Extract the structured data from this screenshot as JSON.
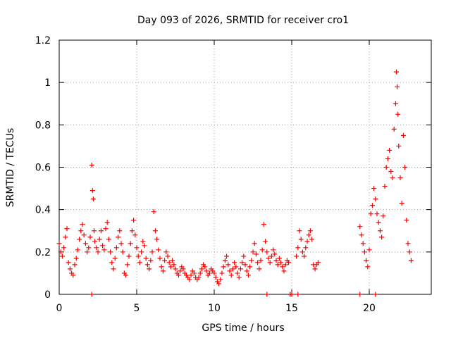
{
  "chart_data": {
    "type": "scatter",
    "title": "Day 093 of 2026, SRMTID for receiver cro1",
    "xlabel": "GPS time / hours",
    "ylabel": "SRMTID / TECUs",
    "xlim": [
      0,
      24
    ],
    "ylim": [
      0,
      1.2
    ],
    "xticks": [
      0,
      5,
      10,
      15,
      20
    ],
    "yticks": [
      0,
      0.2,
      0.4,
      0.6,
      0.8,
      1,
      1.2
    ],
    "xtick_labels": [
      "0",
      "5",
      "10",
      "15",
      "20"
    ],
    "ytick_labels": [
      "0",
      "0.2",
      "0.4",
      "0.6",
      "0.8",
      "1",
      "1.2"
    ],
    "grid": true,
    "marker": "+",
    "series": [
      {
        "name": "SRMTID",
        "color": "#ff0000",
        "x": [
          0.0,
          0.1,
          0.2,
          0.3,
          0.4,
          0.5,
          0.6,
          0.7,
          0.8,
          0.9,
          1.0,
          1.1,
          1.2,
          1.3,
          1.4,
          1.5,
          1.6,
          1.7,
          1.8,
          1.9,
          2.0,
          2.1,
          2.15,
          2.2,
          2.25,
          2.3,
          2.4,
          2.5,
          2.6,
          2.7,
          2.8,
          2.9,
          3.0,
          3.1,
          3.2,
          3.3,
          3.4,
          3.5,
          3.6,
          3.7,
          3.8,
          3.9,
          4.0,
          4.1,
          4.2,
          4.3,
          4.4,
          4.5,
          4.6,
          4.7,
          4.8,
          4.9,
          5.0,
          5.1,
          5.2,
          5.3,
          5.4,
          5.5,
          5.6,
          5.7,
          5.8,
          5.9,
          6.0,
          6.1,
          6.2,
          6.3,
          6.4,
          6.5,
          6.6,
          6.7,
          6.8,
          6.9,
          7.0,
          7.1,
          7.2,
          7.3,
          7.4,
          7.5,
          7.6,
          7.7,
          7.8,
          7.9,
          8.0,
          8.1,
          8.2,
          8.3,
          8.4,
          8.5,
          8.6,
          8.7,
          8.8,
          8.9,
          9.0,
          9.1,
          9.2,
          9.3,
          9.4,
          9.5,
          9.6,
          9.7,
          9.8,
          9.9,
          10.0,
          10.1,
          10.2,
          10.3,
          10.4,
          10.5,
          10.6,
          10.7,
          10.8,
          10.9,
          11.0,
          11.1,
          11.2,
          11.3,
          11.4,
          11.5,
          11.6,
          11.7,
          11.8,
          11.9,
          12.0,
          12.1,
          12.2,
          12.3,
          12.4,
          12.5,
          12.6,
          12.7,
          12.8,
          12.9,
          13.0,
          13.1,
          13.2,
          13.3,
          13.4,
          13.5,
          13.6,
          13.7,
          13.8,
          13.9,
          14.0,
          14.1,
          14.2,
          14.3,
          14.4,
          14.5,
          14.6,
          14.7,
          14.8,
          14.9,
          15.0,
          15.3,
          15.4,
          15.5,
          15.6,
          15.7,
          15.8,
          15.9,
          16.0,
          16.1,
          16.2,
          16.3,
          16.4,
          16.5,
          16.6,
          16.7,
          19.4,
          19.5,
          19.6,
          19.7,
          19.8,
          19.9,
          20.0,
          20.1,
          20.2,
          20.3,
          20.4,
          20.5,
          20.6,
          20.7,
          20.8,
          20.9,
          21.0,
          21.1,
          21.2,
          21.3,
          21.4,
          21.5,
          21.6,
          21.7,
          21.75,
          21.8,
          21.85,
          21.9,
          22.0,
          22.1,
          22.2,
          22.3,
          22.4,
          22.5,
          22.6,
          22.7,
          2.1,
          13.4,
          14.9,
          15.4,
          19.4,
          20.4
        ],
        "y": [
          0.24,
          0.2,
          0.18,
          0.22,
          0.27,
          0.31,
          0.15,
          0.12,
          0.1,
          0.09,
          0.14,
          0.17,
          0.21,
          0.26,
          0.3,
          0.33,
          0.28,
          0.24,
          0.2,
          0.22,
          0.27,
          0.61,
          0.49,
          0.45,
          0.3,
          0.25,
          0.22,
          0.2,
          0.26,
          0.3,
          0.23,
          0.21,
          0.31,
          0.34,
          0.26,
          0.2,
          0.15,
          0.12,
          0.17,
          0.22,
          0.27,
          0.3,
          0.24,
          0.2,
          0.1,
          0.09,
          0.14,
          0.18,
          0.24,
          0.3,
          0.35,
          0.28,
          0.22,
          0.18,
          0.15,
          0.2,
          0.25,
          0.23,
          0.17,
          0.14,
          0.12,
          0.16,
          0.2,
          0.39,
          0.3,
          0.26,
          0.21,
          0.17,
          0.13,
          0.11,
          0.16,
          0.2,
          0.18,
          0.15,
          0.13,
          0.16,
          0.14,
          0.12,
          0.1,
          0.09,
          0.11,
          0.13,
          0.12,
          0.1,
          0.09,
          0.08,
          0.07,
          0.09,
          0.11,
          0.1,
          0.08,
          0.07,
          0.08,
          0.1,
          0.12,
          0.14,
          0.13,
          0.11,
          0.09,
          0.1,
          0.12,
          0.11,
          0.1,
          0.08,
          0.06,
          0.05,
          0.07,
          0.1,
          0.13,
          0.16,
          0.18,
          0.14,
          0.11,
          0.09,
          0.12,
          0.15,
          0.13,
          0.1,
          0.08,
          0.12,
          0.15,
          0.18,
          0.14,
          0.11,
          0.09,
          0.13,
          0.16,
          0.2,
          0.24,
          0.19,
          0.15,
          0.12,
          0.16,
          0.21,
          0.33,
          0.25,
          0.2,
          0.17,
          0.15,
          0.18,
          0.21,
          0.19,
          0.16,
          0.14,
          0.17,
          0.15,
          0.13,
          0.11,
          0.14,
          0.16,
          0.15,
          0.0,
          0.0,
          0.18,
          0.22,
          0.3,
          0.26,
          0.2,
          0.18,
          0.22,
          0.25,
          0.28,
          0.3,
          0.26,
          0.14,
          0.12,
          0.14,
          0.15,
          0.32,
          0.28,
          0.24,
          0.2,
          0.16,
          0.13,
          0.21,
          0.38,
          0.42,
          0.5,
          0.45,
          0.38,
          0.34,
          0.3,
          0.27,
          0.37,
          0.51,
          0.6,
          0.64,
          0.68,
          0.58,
          0.55,
          0.78,
          0.9,
          1.05,
          0.98,
          0.85,
          0.7,
          0.55,
          0.43,
          0.75,
          0.6,
          0.35,
          0.24,
          0.2,
          0.16,
          0.0,
          0.0,
          0.0,
          0.0,
          0.0,
          0.0
        ]
      }
    ]
  }
}
